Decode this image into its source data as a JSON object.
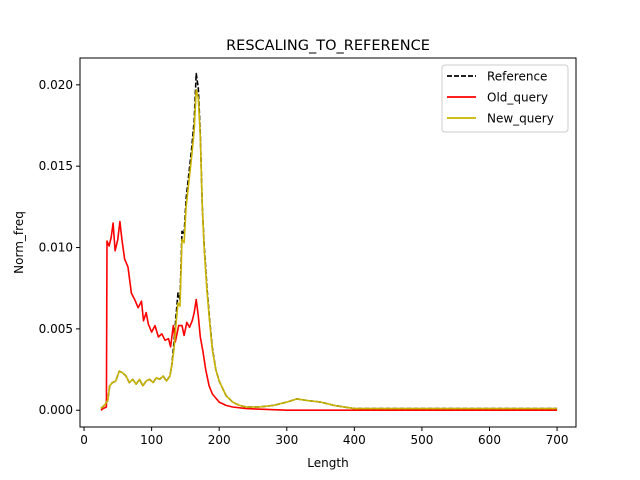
{
  "chart_data": {
    "type": "line",
    "title": "RESCALING_TO_REFERENCE",
    "xlabel": "Length",
    "ylabel": "Norm_freq",
    "xlim": [
      -6,
      728
    ],
    "ylim": [
      -0.00103,
      0.02165
    ],
    "xticks": [
      0,
      100,
      200,
      300,
      400,
      500,
      600,
      700
    ],
    "yticks": [
      0.0,
      0.005,
      0.01,
      0.015,
      0.02
    ],
    "ytick_labels": [
      "0.000",
      "0.005",
      "0.010",
      "0.015",
      "0.020"
    ],
    "grid": false,
    "legend_position": "top-right",
    "series": [
      {
        "name": "Reference",
        "color": "#000000",
        "style": "dashed",
        "points": [
          [
            25,
            0.0001
          ],
          [
            30,
            0.0003
          ],
          [
            35,
            0.0006
          ],
          [
            38,
            0.0015
          ],
          [
            42,
            0.0017
          ],
          [
            47,
            0.0018
          ],
          [
            52,
            0.0024
          ],
          [
            57,
            0.0023
          ],
          [
            62,
            0.0021
          ],
          [
            67,
            0.0017
          ],
          [
            72,
            0.0019
          ],
          [
            77,
            0.0016
          ],
          [
            82,
            0.0019
          ],
          [
            87,
            0.0015
          ],
          [
            92,
            0.0018
          ],
          [
            97,
            0.0019
          ],
          [
            102,
            0.0017
          ],
          [
            107,
            0.002
          ],
          [
            112,
            0.0019
          ],
          [
            117,
            0.0021
          ],
          [
            122,
            0.0018
          ],
          [
            127,
            0.0021
          ],
          [
            130,
            0.0028
          ],
          [
            133,
            0.0041
          ],
          [
            136,
            0.0058
          ],
          [
            139,
            0.0072
          ],
          [
            142,
            0.0068
          ],
          [
            145,
            0.011
          ],
          [
            148,
            0.0108
          ],
          [
            151,
            0.013
          ],
          [
            155,
            0.0145
          ],
          [
            159,
            0.016
          ],
          [
            163,
            0.0178
          ],
          [
            166,
            0.0207
          ],
          [
            169,
            0.0198
          ],
          [
            172,
            0.017
          ],
          [
            175,
            0.0125
          ],
          [
            178,
            0.01
          ],
          [
            182,
            0.0075
          ],
          [
            186,
            0.0055
          ],
          [
            190,
            0.0038
          ],
          [
            195,
            0.0025
          ],
          [
            200,
            0.0018
          ],
          [
            210,
            0.0009
          ],
          [
            220,
            0.0005
          ],
          [
            230,
            0.0003
          ],
          [
            240,
            0.0002
          ],
          [
            260,
            0.0002
          ],
          [
            280,
            0.0003
          ],
          [
            300,
            0.0005
          ],
          [
            315,
            0.0007
          ],
          [
            330,
            0.0006
          ],
          [
            350,
            0.0005
          ],
          [
            370,
            0.0003
          ],
          [
            385,
            0.0002
          ],
          [
            400,
            0.0001
          ],
          [
            500,
            0.0001
          ],
          [
            600,
            0.0001
          ],
          [
            700,
            0.0001
          ]
        ]
      },
      {
        "name": "Old_query",
        "color": "#ff0000",
        "style": "solid",
        "points": [
          [
            25,
            0.0
          ],
          [
            28,
            0.0001
          ],
          [
            33,
            0.0002
          ],
          [
            34,
            0.0104
          ],
          [
            37,
            0.0101
          ],
          [
            40,
            0.0106
          ],
          [
            43,
            0.0115
          ],
          [
            46,
            0.0098
          ],
          [
            50,
            0.0105
          ],
          [
            53,
            0.0116
          ],
          [
            56,
            0.0105
          ],
          [
            60,
            0.0093
          ],
          [
            65,
            0.0088
          ],
          [
            70,
            0.0072
          ],
          [
            75,
            0.0068
          ],
          [
            80,
            0.0063
          ],
          [
            85,
            0.0067
          ],
          [
            88,
            0.0055
          ],
          [
            92,
            0.006
          ],
          [
            95,
            0.0053
          ],
          [
            100,
            0.0048
          ],
          [
            105,
            0.0052
          ],
          [
            110,
            0.0045
          ],
          [
            115,
            0.0047
          ],
          [
            120,
            0.0043
          ],
          [
            125,
            0.0044
          ],
          [
            128,
            0.0039
          ],
          [
            132,
            0.0052
          ],
          [
            135,
            0.0042
          ],
          [
            140,
            0.0052
          ],
          [
            145,
            0.0052
          ],
          [
            148,
            0.0046
          ],
          [
            152,
            0.0054
          ],
          [
            156,
            0.0051
          ],
          [
            160,
            0.0055
          ],
          [
            163,
            0.006
          ],
          [
            166,
            0.0068
          ],
          [
            169,
            0.0058
          ],
          [
            172,
            0.0045
          ],
          [
            176,
            0.0036
          ],
          [
            180,
            0.0025
          ],
          [
            185,
            0.0015
          ],
          [
            190,
            0.001
          ],
          [
            200,
            0.0005
          ],
          [
            210,
            0.0003
          ],
          [
            220,
            0.0002
          ],
          [
            240,
            0.0001
          ],
          [
            300,
            0.0
          ],
          [
            400,
            0.0
          ],
          [
            500,
            0.0
          ],
          [
            600,
            0.0
          ],
          [
            700,
            0.0
          ]
        ]
      },
      {
        "name": "New_query",
        "color": "#c8b400",
        "style": "solid",
        "points": [
          [
            25,
            0.0001
          ],
          [
            30,
            0.0003
          ],
          [
            35,
            0.0006
          ],
          [
            38,
            0.0015
          ],
          [
            42,
            0.0017
          ],
          [
            47,
            0.0018
          ],
          [
            52,
            0.0024
          ],
          [
            57,
            0.0023
          ],
          [
            62,
            0.0021
          ],
          [
            67,
            0.0017
          ],
          [
            72,
            0.0019
          ],
          [
            77,
            0.0016
          ],
          [
            82,
            0.0019
          ],
          [
            87,
            0.0015
          ],
          [
            92,
            0.0018
          ],
          [
            97,
            0.0019
          ],
          [
            102,
            0.0017
          ],
          [
            107,
            0.002
          ],
          [
            112,
            0.0019
          ],
          [
            117,
            0.0021
          ],
          [
            122,
            0.0018
          ],
          [
            127,
            0.0021
          ],
          [
            130,
            0.0028
          ],
          [
            133,
            0.0037
          ],
          [
            136,
            0.0053
          ],
          [
            139,
            0.0066
          ],
          [
            142,
            0.0064
          ],
          [
            145,
            0.0105
          ],
          [
            148,
            0.0103
          ],
          [
            151,
            0.0125
          ],
          [
            155,
            0.014
          ],
          [
            159,
            0.0155
          ],
          [
            163,
            0.0172
          ],
          [
            166,
            0.0197
          ],
          [
            169,
            0.0192
          ],
          [
            172,
            0.0168
          ],
          [
            175,
            0.0125
          ],
          [
            178,
            0.0098
          ],
          [
            182,
            0.0073
          ],
          [
            186,
            0.0054
          ],
          [
            190,
            0.0037
          ],
          [
            195,
            0.0025
          ],
          [
            200,
            0.0018
          ],
          [
            210,
            0.0009
          ],
          [
            220,
            0.0005
          ],
          [
            230,
            0.0003
          ],
          [
            240,
            0.0002
          ],
          [
            260,
            0.0002
          ],
          [
            280,
            0.0003
          ],
          [
            300,
            0.0005
          ],
          [
            315,
            0.0007
          ],
          [
            330,
            0.0006
          ],
          [
            350,
            0.0005
          ],
          [
            370,
            0.0003
          ],
          [
            385,
            0.0002
          ],
          [
            400,
            0.0001
          ],
          [
            500,
            0.0001
          ],
          [
            600,
            0.0001
          ],
          [
            700,
            0.0001
          ]
        ]
      }
    ]
  }
}
